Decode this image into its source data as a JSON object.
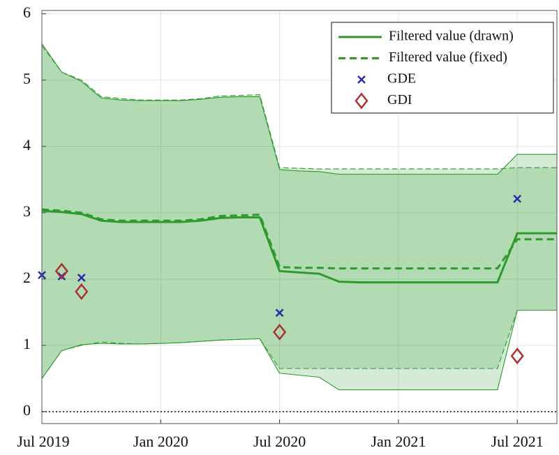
{
  "chart_data": {
    "type": "line",
    "x": [
      "2019-07",
      "2019-08",
      "2019-09",
      "2019-10",
      "2019-11",
      "2019-12",
      "2020-01",
      "2020-02",
      "2020-03",
      "2020-04",
      "2020-05",
      "2020-06",
      "2020-07",
      "2020-08",
      "2020-09",
      "2020-10",
      "2020-11",
      "2020-12",
      "2021-01",
      "2021-02",
      "2021-03",
      "2021-04",
      "2021-05",
      "2021-06",
      "2021-07",
      "2021-08",
      "2021-09"
    ],
    "series": [
      {
        "name": "Filtered value (drawn)",
        "color": "#2e9a2e",
        "style": "solid",
        "values": [
          3.03,
          3.01,
          2.98,
          2.88,
          2.86,
          2.86,
          2.86,
          2.86,
          2.88,
          2.92,
          2.93,
          2.93,
          2.12,
          2.1,
          2.08,
          1.96,
          1.95,
          1.95,
          1.95,
          1.95,
          1.95,
          1.95,
          1.95,
          1.95,
          2.69,
          2.69,
          2.69
        ],
        "upper": [
          5.55,
          5.12,
          4.98,
          4.73,
          4.7,
          4.69,
          4.69,
          4.69,
          4.71,
          4.74,
          4.75,
          4.75,
          3.65,
          3.63,
          3.62,
          3.58,
          3.58,
          3.58,
          3.58,
          3.58,
          3.58,
          3.58,
          3.58,
          3.58,
          3.88,
          3.88,
          3.88
        ],
        "lower": [
          0.5,
          0.92,
          1.01,
          1.03,
          1.02,
          1.02,
          1.03,
          1.04,
          1.06,
          1.08,
          1.09,
          1.1,
          0.58,
          0.55,
          0.52,
          0.33,
          0.33,
          0.33,
          0.33,
          0.33,
          0.33,
          0.33,
          0.33,
          0.33,
          1.53,
          1.53,
          1.53
        ]
      },
      {
        "name": "Filtered value (fixed)",
        "color": "#2e9a2e",
        "style": "dashed",
        "values": [
          3.05,
          3.03,
          3.0,
          2.9,
          2.88,
          2.88,
          2.88,
          2.88,
          2.9,
          2.95,
          2.96,
          2.97,
          2.18,
          2.17,
          2.17,
          2.16,
          2.16,
          2.16,
          2.16,
          2.16,
          2.16,
          2.16,
          2.16,
          2.16,
          2.6,
          2.6,
          2.6
        ],
        "upper": [
          5.52,
          5.12,
          5.0,
          4.75,
          4.72,
          4.7,
          4.7,
          4.7,
          4.72,
          4.76,
          4.77,
          4.78,
          3.68,
          3.67,
          3.66,
          3.66,
          3.66,
          3.66,
          3.66,
          3.66,
          3.66,
          3.66,
          3.66,
          3.66,
          3.68,
          3.68,
          3.68
        ],
        "lower": [
          0.5,
          0.92,
          1.0,
          1.05,
          1.03,
          1.02,
          1.03,
          1.04,
          1.06,
          1.08,
          1.09,
          1.1,
          0.65,
          0.65,
          0.65,
          0.65,
          0.65,
          0.65,
          0.65,
          0.65,
          0.65,
          0.65,
          0.65,
          0.65,
          1.53,
          1.53,
          1.53
        ]
      },
      {
        "name": "GDE",
        "color": "#2b2ba8",
        "marker": "x",
        "x": [
          "2019-07",
          "2019-08",
          "2019-09",
          "2020-07",
          "2021-07"
        ],
        "values": [
          2.06,
          2.04,
          2.02,
          1.49,
          3.21
        ]
      },
      {
        "name": "GDI",
        "color": "#a83232",
        "marker": "diamond",
        "x": [
          "2019-08",
          "2019-09",
          "2020-07",
          "2021-07"
        ],
        "values": [
          2.12,
          1.81,
          1.2,
          0.84
        ]
      }
    ],
    "reference_line": 0,
    "xlim": [
      "2019-07",
      "2021-09"
    ],
    "xticks": [
      {
        "value": "2019-07",
        "label": "Jul 2019"
      },
      {
        "value": "2020-01",
        "label": "Jan 2020"
      },
      {
        "value": "2020-07",
        "label": "Jul 2020"
      },
      {
        "value": "2021-01",
        "label": "Jan 2021"
      },
      {
        "value": "2021-07",
        "label": "Jul 2021"
      }
    ],
    "ylim": [
      -0.18,
      6.05
    ],
    "yticks": [
      0,
      1,
      2,
      3,
      4,
      5,
      6
    ],
    "grid": true,
    "legend": "upper-right"
  }
}
